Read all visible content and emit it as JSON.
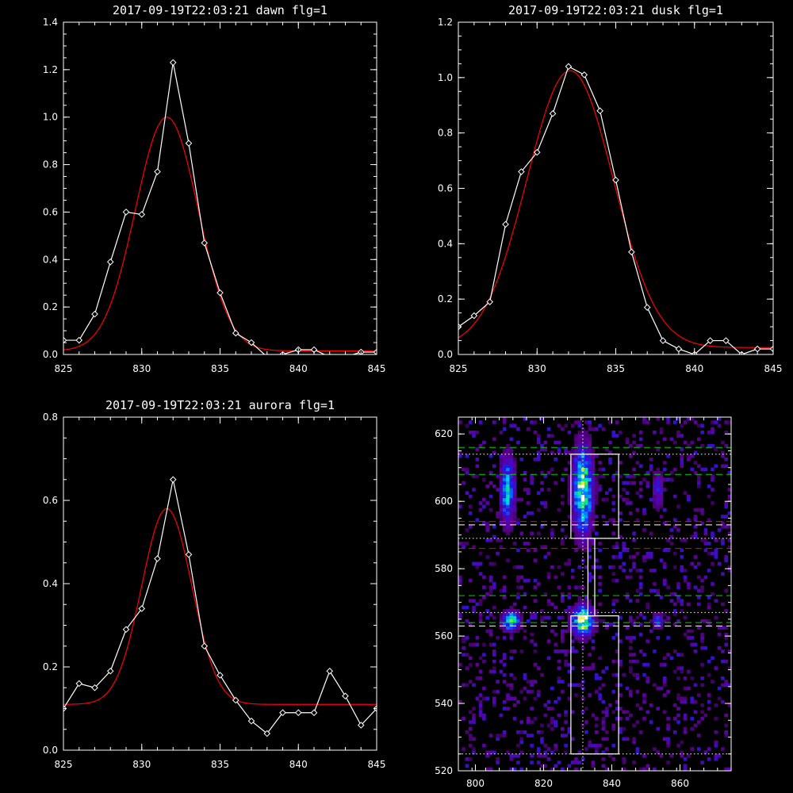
{
  "chart_data": [
    {
      "type": "line",
      "title": "2017-09-19T22:03:21 dawn flg=1",
      "xlim": [
        825,
        845
      ],
      "ylim": [
        0,
        1.4
      ],
      "xticks": [
        825,
        830,
        835,
        840,
        845
      ],
      "yticks": [
        0.0,
        0.2,
        0.4,
        0.6,
        0.8,
        1.0,
        1.2,
        1.4
      ],
      "ytick_labels": [
        "0.0",
        "0.2",
        "0.4",
        "0.6",
        "0.8",
        "1.0",
        "1.2",
        "1.4"
      ],
      "series": [
        {
          "kind": "data",
          "color": "#ffffff",
          "marker": "diamond",
          "x": [
            825,
            826,
            827,
            828,
            829,
            830,
            831,
            832,
            833,
            834,
            835,
            836,
            837,
            838,
            839,
            840,
            841,
            842,
            843,
            844,
            845
          ],
          "y": [
            0.06,
            0.06,
            0.17,
            0.39,
            0.6,
            0.59,
            0.77,
            1.23,
            0.89,
            0.47,
            0.26,
            0.09,
            0.05,
            -0.01,
            0.0,
            0.02,
            0.02,
            -0.01,
            -0.01,
            0.01,
            0.01
          ]
        },
        {
          "kind": "fit",
          "color": "#ff0000",
          "amp": 0.985,
          "center": 831.6,
          "sigma": 2.0,
          "offset": 0.015
        }
      ]
    },
    {
      "type": "line",
      "title": "2017-09-19T22:03:21 dusk flg=1",
      "xlim": [
        825,
        845
      ],
      "ylim": [
        0,
        1.2
      ],
      "xticks": [
        825,
        830,
        835,
        840,
        845
      ],
      "yticks": [
        0.0,
        0.2,
        0.4,
        0.6,
        0.8,
        1.0,
        1.2
      ],
      "ytick_labels": [
        "0.0",
        "0.2",
        "0.4",
        "0.6",
        "0.8",
        "1.0",
        "1.2"
      ],
      "series": [
        {
          "kind": "data",
          "color": "#ffffff",
          "marker": "diamond",
          "x": [
            825,
            826,
            827,
            828,
            829,
            830,
            831,
            832,
            833,
            834,
            835,
            836,
            837,
            838,
            839,
            840,
            841,
            842,
            843,
            844,
            845
          ],
          "y": [
            0.1,
            0.14,
            0.19,
            0.47,
            0.66,
            0.73,
            0.87,
            1.04,
            1.01,
            0.88,
            0.63,
            0.37,
            0.17,
            0.05,
            0.02,
            0.0,
            0.05,
            0.05,
            0.0,
            0.02,
            0.02
          ]
        },
        {
          "kind": "fit",
          "color": "#ff0000",
          "amp": 1.0,
          "center": 832.1,
          "sigma": 2.75,
          "offset": 0.025
        }
      ]
    },
    {
      "type": "line",
      "title": "2017-09-19T22:03:21 aurora flg=1",
      "xlim": [
        825,
        845
      ],
      "ylim": [
        0,
        0.8
      ],
      "xticks": [
        825,
        830,
        835,
        840,
        845
      ],
      "yticks": [
        0.0,
        0.2,
        0.4,
        0.6,
        0.8
      ],
      "ytick_labels": [
        "0.0",
        "0.2",
        "0.4",
        "0.6",
        "0.8"
      ],
      "series": [
        {
          "kind": "data",
          "color": "#ffffff",
          "marker": "diamond",
          "x": [
            825,
            826,
            827,
            828,
            829,
            830,
            831,
            832,
            833,
            834,
            835,
            836,
            837,
            838,
            839,
            840,
            841,
            842,
            843,
            844,
            845
          ],
          "y": [
            0.1,
            0.16,
            0.15,
            0.19,
            0.29,
            0.34,
            0.46,
            0.65,
            0.47,
            0.25,
            0.18,
            0.12,
            0.07,
            0.04,
            0.09,
            0.09,
            0.09,
            0.19,
            0.13,
            0.06,
            0.1
          ]
        },
        {
          "kind": "fit",
          "color": "#ff0000",
          "amp": 0.47,
          "center": 831.6,
          "sigma": 1.6,
          "offset": 0.11
        }
      ]
    },
    {
      "type": "heatmap",
      "title": "",
      "xlim": [
        795,
        875
      ],
      "ylim": [
        520,
        625
      ],
      "xticks": [
        800,
        820,
        840,
        860
      ],
      "yticks": [
        520,
        540,
        560,
        580,
        600,
        620
      ],
      "bright_blobs": [
        {
          "x": 810,
          "y": 564,
          "strength": 0.9,
          "sx": 1.8,
          "sy": 2
        },
        {
          "x": 809,
          "y": 603,
          "strength": 0.75,
          "sx": 1.5,
          "sy": 7
        },
        {
          "x": 831,
          "y": 603,
          "strength": 1.0,
          "sx": 2,
          "sy": 9
        },
        {
          "x": 831,
          "y": 564,
          "strength": 1.05,
          "sx": 2.2,
          "sy": 3
        },
        {
          "x": 853,
          "y": 564,
          "strength": 0.55,
          "sx": 1.2,
          "sy": 1.5
        },
        {
          "x": 853,
          "y": 603,
          "strength": 0.4,
          "sx": 1.2,
          "sy": 4
        }
      ],
      "boxes": [
        {
          "x0": 828,
          "x1": 842,
          "y0": 589,
          "y1": 614
        },
        {
          "x0": 828,
          "x1": 842,
          "y0": 525,
          "y1": 566
        },
        {
          "x0": 833,
          "x1": 835,
          "y0": 566,
          "y1": 589
        }
      ],
      "hlines": [
        {
          "y": 616,
          "color": "#00d000",
          "style": "dashed"
        },
        {
          "y": 614,
          "color": "#ffffff",
          "style": "dotted"
        },
        {
          "y": 608,
          "color": "#00d000",
          "style": "dashed"
        },
        {
          "y": 594,
          "color": "#ff0000",
          "style": "dashed"
        },
        {
          "y": 593,
          "color": "#ffffff",
          "style": "dashed"
        },
        {
          "y": 589,
          "color": "#ffffff",
          "style": "dotted"
        },
        {
          "y": 586,
          "color": "#ff0000",
          "style": "dashed"
        },
        {
          "y": 572,
          "color": "#00d000",
          "style": "dashed"
        },
        {
          "y": 567,
          "color": "#ffffff",
          "style": "dotted"
        },
        {
          "y": 564,
          "color": "#00d000",
          "style": "dashed"
        },
        {
          "y": 563,
          "color": "#ffffff",
          "style": "dashed"
        },
        {
          "y": 525,
          "color": "#ffffff",
          "style": "dotted"
        }
      ],
      "vlines": [
        {
          "x": 831.5,
          "color": "#ffffff",
          "style": "dotted"
        }
      ]
    }
  ]
}
